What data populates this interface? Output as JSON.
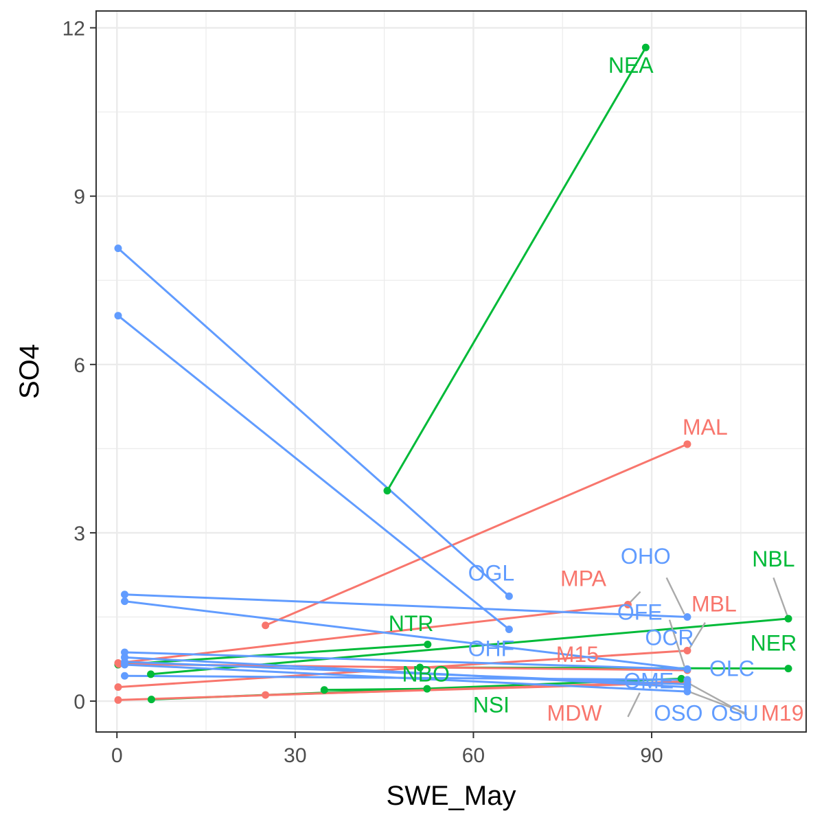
{
  "chart_data": {
    "type": "line",
    "xlabel": "SWE_May",
    "ylabel": "SO4",
    "xlim": [
      -3.5,
      116
    ],
    "ylim": [
      -0.55,
      12.3
    ],
    "x_ticks": [
      0,
      30,
      60,
      90
    ],
    "y_ticks": [
      0,
      3,
      6,
      9,
      12
    ],
    "x_tick_labels": [
      "0",
      "30",
      "60",
      "90"
    ],
    "y_tick_labels": [
      "0",
      "3",
      "6",
      "9",
      "12"
    ],
    "grid": true,
    "colors": {
      "red": "#F8766D",
      "green": "#00BA38",
      "blue": "#619CFF",
      "leader": "#aaaaaa"
    },
    "series": [
      {
        "color": "green",
        "label": "NEA",
        "x": [
          45.5,
          89
        ],
        "y": [
          3.75,
          11.65
        ]
      },
      {
        "color": "green",
        "label": "NBL",
        "x": [
          5.7,
          113
        ],
        "y": [
          0.48,
          1.47
        ]
      },
      {
        "color": "green",
        "label": "NTR",
        "x": [
          0.2,
          52.3
        ],
        "y": [
          0.65,
          1.01
        ]
      },
      {
        "color": "green",
        "label": "NER",
        "x": [
          51,
          113
        ],
        "y": [
          0.6,
          0.58
        ]
      },
      {
        "color": "green",
        "label": "NBO",
        "x": [
          34.9,
          52.2
        ],
        "y": [
          0.2,
          0.22
        ]
      },
      {
        "color": "green",
        "label": "NSI",
        "x": [
          5.8,
          95
        ],
        "y": [
          0.03,
          0.4
        ]
      },
      {
        "color": "red",
        "label": "MAL",
        "x": [
          25,
          96
        ],
        "y": [
          1.35,
          4.58
        ]
      },
      {
        "color": "red",
        "label": "MPA",
        "x": [
          0.2,
          86
        ],
        "y": [
          0.68,
          1.72
        ]
      },
      {
        "color": "red",
        "label": "MBL",
        "x": [
          0.2,
          96
        ],
        "y": [
          0.25,
          0.9
        ]
      },
      {
        "color": "red",
        "label": "M15",
        "x": [
          0.3,
          96
        ],
        "y": [
          0.66,
          0.55
        ]
      },
      {
        "color": "red",
        "label": "MDW",
        "x": [
          0.2,
          96
        ],
        "y": [
          0.02,
          0.35
        ]
      },
      {
        "color": "red",
        "label": "M19",
        "x": [
          25,
          96
        ],
        "y": [
          0.11,
          0.33
        ]
      },
      {
        "color": "blue",
        "label": "OGL",
        "x": [
          0.2,
          66
        ],
        "y": [
          8.07,
          1.87
        ]
      },
      {
        "color": "blue",
        "label": "OHF",
        "x": [
          0.2,
          66
        ],
        "y": [
          6.87,
          1.28
        ]
      },
      {
        "color": "blue",
        "label": "OHO",
        "x": [
          1.3,
          96
        ],
        "y": [
          1.9,
          1.5
        ]
      },
      {
        "color": "blue",
        "label": "OFE",
        "x": [
          1.3,
          96
        ],
        "y": [
          1.78,
          0.57
        ]
      },
      {
        "color": "blue",
        "label": "OCR",
        "x": [
          1.3,
          96
        ],
        "y": [
          0.87,
          0.57
        ]
      },
      {
        "color": "blue",
        "label": "OLC",
        "x": [
          1.3,
          96
        ],
        "y": [
          0.7,
          0.3
        ]
      },
      {
        "color": "blue",
        "label": "OME",
        "x": [
          1.3,
          96
        ],
        "y": [
          0.45,
          0.38
        ]
      },
      {
        "color": "blue",
        "label": "OSO",
        "x": [
          1.3,
          96
        ],
        "y": [
          0.65,
          0.17
        ]
      },
      {
        "color": "blue",
        "label": "OSU",
        "x": [
          1.3,
          96
        ],
        "y": [
          0.78,
          0.25
        ]
      }
    ],
    "labels": [
      {
        "text": "NEA",
        "color": "green",
        "x": 86.5,
        "y": 11.2
      },
      {
        "text": "NBL",
        "color": "green",
        "x": 110.5,
        "y": 2.4
      },
      {
        "text": "NTR",
        "color": "green",
        "x": 49.5,
        "y": 1.25
      },
      {
        "text": "NER",
        "color": "green",
        "x": 110.5,
        "y": 0.9
      },
      {
        "text": "NBO",
        "color": "green",
        "x": 52,
        "y": 0.35
      },
      {
        "text": "NSI",
        "color": "green",
        "x": 63,
        "y": -0.2
      },
      {
        "text": "MAL",
        "color": "red",
        "x": 99,
        "y": 4.75
      },
      {
        "text": "MPA",
        "color": "red",
        "x": 78.5,
        "y": 2.05
      },
      {
        "text": "MBL",
        "color": "red",
        "x": 100.5,
        "y": 1.6
      },
      {
        "text": "M15",
        "color": "red",
        "x": 77.5,
        "y": 0.7
      },
      {
        "text": "MDW",
        "color": "red",
        "x": 77,
        "y": -0.35
      },
      {
        "text": "M19",
        "color": "red",
        "x": 112,
        "y": -0.35
      },
      {
        "text": "OGL",
        "color": "blue",
        "x": 63,
        "y": 2.15
      },
      {
        "text": "OHF",
        "color": "blue",
        "x": 63,
        "y": 0.8
      },
      {
        "text": "OHO",
        "color": "blue",
        "x": 89,
        "y": 2.45
      },
      {
        "text": "OFE",
        "color": "blue",
        "x": 88,
        "y": 1.45
      },
      {
        "text": "OCR",
        "color": "blue",
        "x": 93,
        "y": 1.0
      },
      {
        "text": "OLC",
        "color": "blue",
        "x": 103.5,
        "y": 0.45
      },
      {
        "text": "OME",
        "color": "blue",
        "x": 89.5,
        "y": 0.23
      },
      {
        "text": "OSO",
        "color": "blue",
        "x": 94.5,
        "y": -0.35
      },
      {
        "text": "OSU",
        "color": "blue",
        "x": 104,
        "y": -0.35
      }
    ],
    "leaders": [
      {
        "from": [
          88.1,
          1.95
        ],
        "to": [
          86,
          1.72
        ]
      },
      {
        "from": [
          99,
          1.4
        ],
        "to": [
          96.3,
          0.93
        ]
      },
      {
        "from": [
          110.5,
          2.2
        ],
        "to": [
          113,
          1.47
        ]
      },
      {
        "from": [
          92.5,
          2.2
        ],
        "to": [
          95.5,
          1.55
        ]
      },
      {
        "from": [
          93,
          1.45
        ],
        "to": [
          95.5,
          0.62
        ]
      },
      {
        "from": [
          86,
          -0.28
        ],
        "to": [
          88,
          0.15
        ]
      },
      {
        "from": [
          106,
          -0.25
        ],
        "to": [
          96,
          0.33
        ]
      },
      {
        "from": [
          106,
          -0.22
        ],
        "to": [
          96,
          0.18
        ]
      }
    ]
  }
}
